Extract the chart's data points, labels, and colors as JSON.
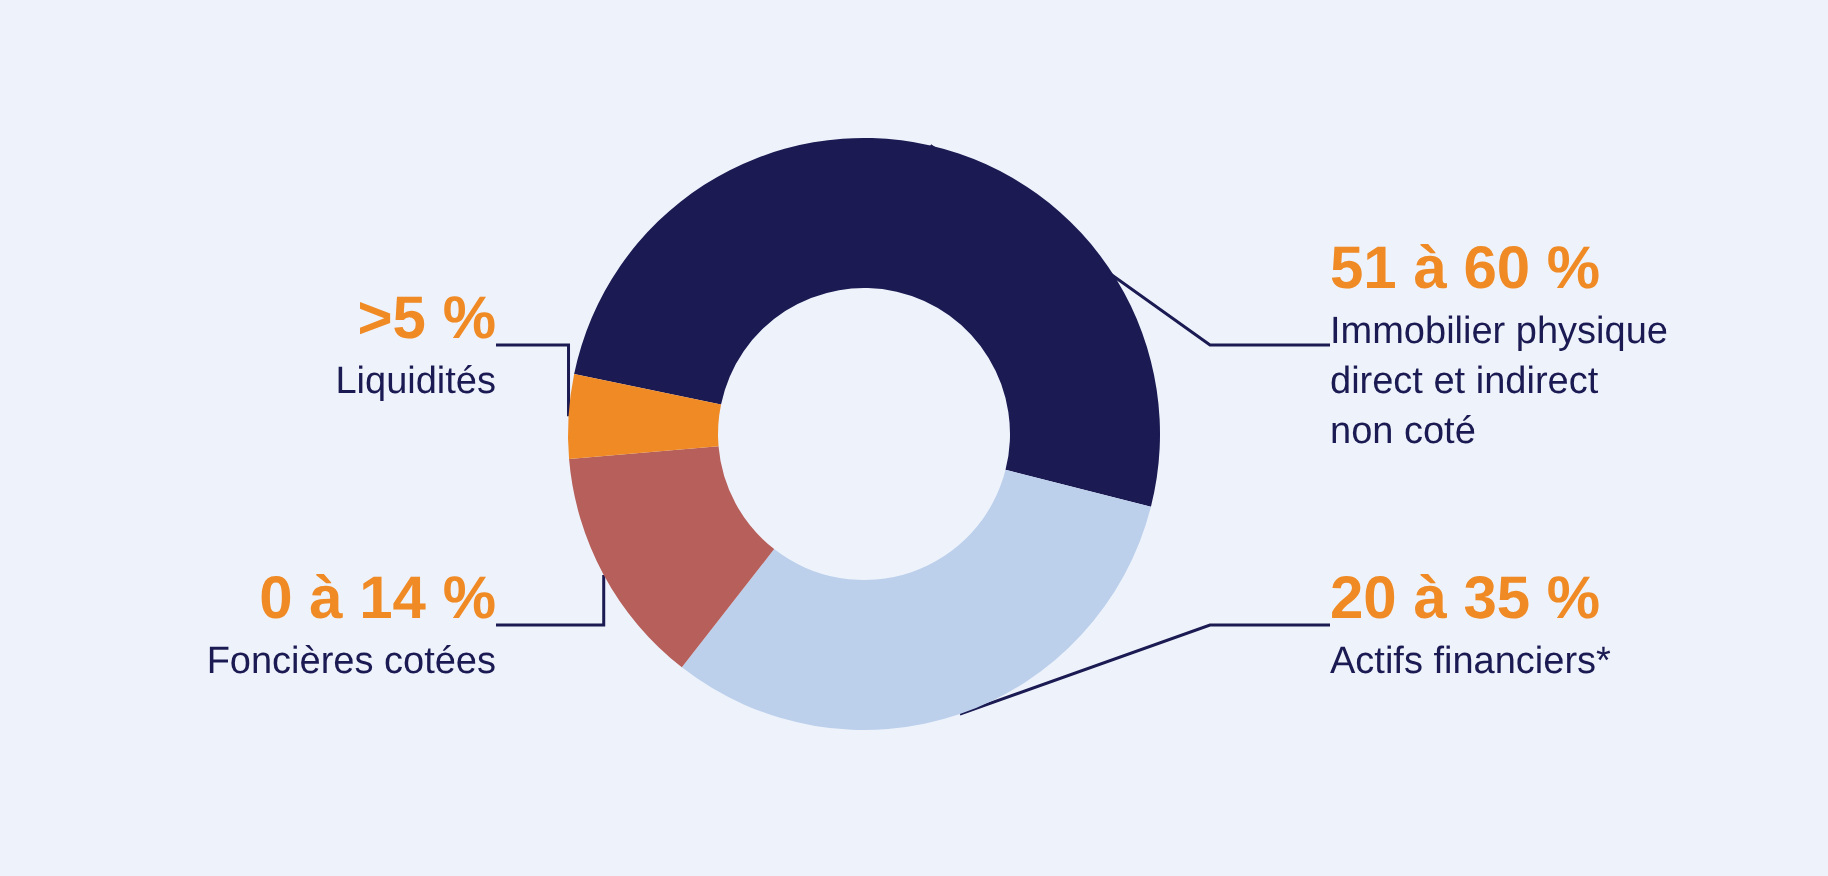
{
  "chart_data": {
    "type": "donut",
    "categories": [
      "Immobilier physique direct et indirect non coté",
      "Actifs financiers*",
      "Foncières cotées",
      "Liquidités"
    ],
    "values": [
      50.7,
      31.6,
      13.1,
      4.6
    ],
    "colors": [
      "#1b1a52",
      "#bcd0ec",
      "#b75f5a",
      "#f08a24"
    ],
    "annotations": [
      "51 à 60 %",
      "20 à 35 %",
      "0 à 14 %",
      ">5 %"
    ],
    "legend": false
  }
}
